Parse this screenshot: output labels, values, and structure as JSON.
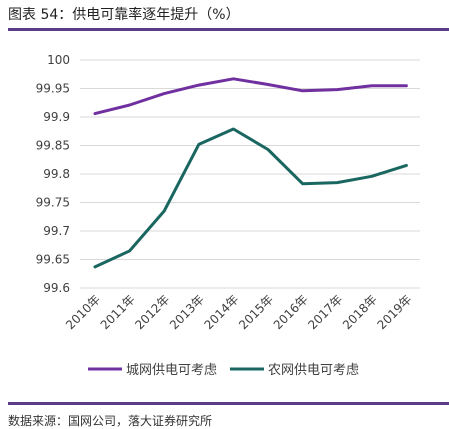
{
  "figure": {
    "title": "图表 54：供电可靠率逐年提升（%）",
    "source": "数据来源：国网公司，落大证券研究所"
  },
  "chart_data": {
    "type": "line",
    "title": "",
    "xlabel": "",
    "ylabel": "",
    "categories": [
      "2010年",
      "2011年",
      "2012年",
      "2013年",
      "2014年",
      "2015年",
      "2016年",
      "2017年",
      "2018年",
      "2019年"
    ],
    "ylim": [
      99.6,
      100
    ],
    "yticks": [
      "99.6",
      "99.65",
      "99.7",
      "99.75",
      "99.8",
      "99.85",
      "99.9",
      "99.95",
      "100"
    ],
    "grid": true,
    "legend_position": "bottom",
    "series": [
      {
        "name": "城网供电可考虑",
        "color": "#7030a0",
        "values": [
          99.906,
          99.921,
          99.941,
          99.956,
          99.967,
          99.957,
          99.946,
          99.948,
          99.955,
          99.955
        ]
      },
      {
        "name": "农网供电可考虑",
        "color": "#1a6660",
        "values": [
          99.637,
          99.665,
          99.735,
          99.852,
          99.879,
          99.843,
          99.783,
          99.785,
          99.796,
          99.815
        ]
      }
    ]
  }
}
